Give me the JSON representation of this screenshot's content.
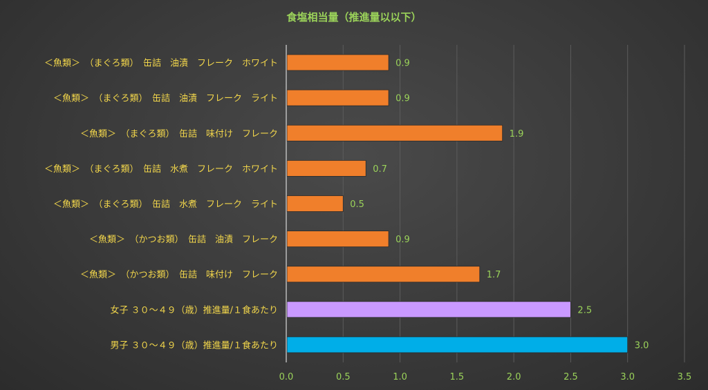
{
  "chart_data": {
    "type": "bar",
    "orientation": "horizontal",
    "title": "食塩相当量（推進量以以下）",
    "xlim": [
      0,
      3.5
    ],
    "x_ticks": [
      "0.0",
      "0.5",
      "1.0",
      "1.5",
      "2.0",
      "2.5",
      "3.0",
      "3.5"
    ],
    "grid": true,
    "categories": [
      "＜魚類＞　（まぐろ類）　缶詰　油漬　フレーク　ホワイト",
      "＜魚類＞　（まぐろ類）　缶詰　油漬　フレーク　ライト",
      "＜魚類＞　（まぐろ類）　缶詰　味付け　フレーク",
      "＜魚類＞　（まぐろ類）　缶詰　水煮　フレーク　ホワイト",
      "＜魚類＞　（まぐろ類）　缶詰　水煮　フレーク　ライト",
      "＜魚類＞　（かつお類）　缶詰　油漬　フレーク",
      "＜魚類＞　（かつお類）　缶詰　味付け　フレーク",
      "女子 ３０～４９（歳）推進量/１食あたり",
      "男子 ３０～４９（歳）推進量/１食あたり"
    ],
    "values": [
      0.9,
      0.9,
      1.9,
      0.7,
      0.5,
      0.9,
      1.7,
      2.5,
      3.0
    ],
    "data_labels": [
      "0.9",
      "0.9",
      "1.9",
      "0.7",
      "0.5",
      "0.9",
      "1.7",
      "2.5",
      "3.0"
    ],
    "colors": [
      "#f07f2b",
      "#f07f2b",
      "#f07f2b",
      "#f07f2b",
      "#f07f2b",
      "#f07f2b",
      "#f07f2b",
      "#c999ff",
      "#00aee8"
    ]
  }
}
